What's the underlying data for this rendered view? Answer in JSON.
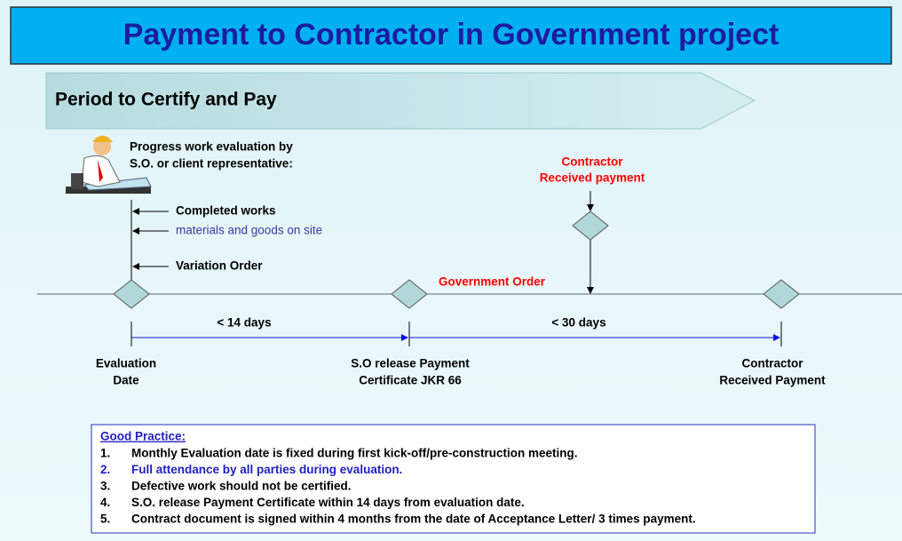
{
  "title": "Payment to Contractor in Government project",
  "banner": "Period to Certify and Pay",
  "evaluator": {
    "lines": [
      "Progress work evaluation by",
      "S.O. or  client representative:"
    ]
  },
  "inputs": [
    "Completed works",
    "materials and goods on site",
    "Variation Order"
  ],
  "top_event": {
    "lines": [
      "Contractor",
      "Received payment"
    ]
  },
  "government_order": "Government Order",
  "intervals": [
    "< 14 days",
    "< 30 days"
  ],
  "milestones": [
    {
      "lines": [
        "Evaluation",
        "Date"
      ]
    },
    {
      "lines": [
        "S.O release Payment",
        "Certificate JKR 66"
      ]
    },
    {
      "lines": [
        "Contractor",
        "Received Payment"
      ]
    }
  ],
  "good_practice": {
    "heading": "Good Practice:",
    "items": [
      {
        "number": "1.",
        "text": "Monthly Evaluation date is fixed during first kick-off/pre-construction meeting."
      },
      {
        "number": "2.",
        "text": "Full attendance by all parties during evaluation."
      },
      {
        "number": "3.",
        "text": "Defective work should not be certified."
      },
      {
        "number": "4.",
        "text": "S.O. release Payment Certificate within 14 days from evaluation date."
      },
      {
        "number": "5.",
        "text": "Contract document is signed within 4 months from the date of Acceptance  Letter/ 3 times payment."
      }
    ]
  }
}
